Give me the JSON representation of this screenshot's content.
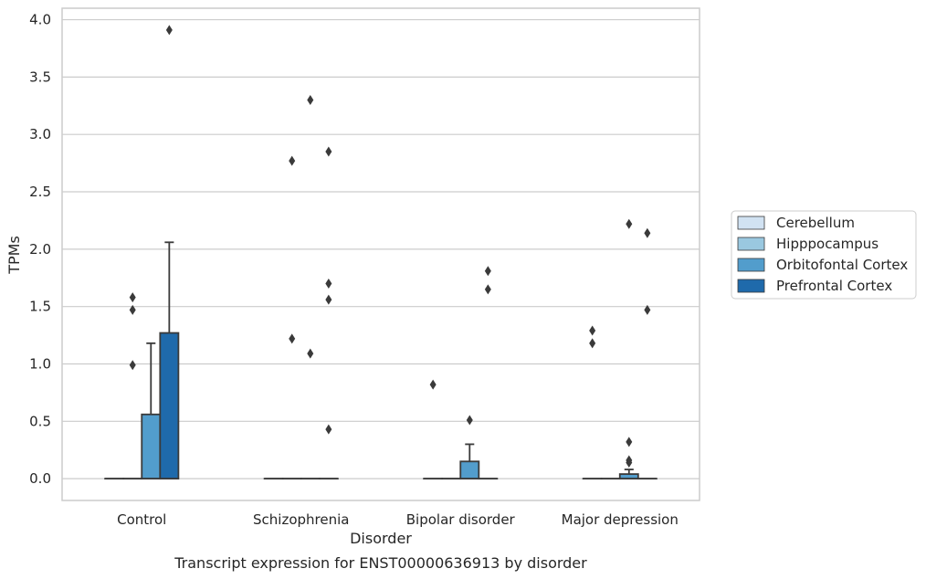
{
  "chart_data": {
    "type": "box",
    "title": "",
    "caption": "Transcript expression for ENST00000636913 by disorder",
    "xlabel": "Disorder",
    "ylabel": "TPMs",
    "ylim": [
      -0.19,
      4.1
    ],
    "yticks": [
      "0.0",
      "0.5",
      "1.0",
      "1.5",
      "2.0",
      "2.5",
      "3.0",
      "3.5",
      "4.0"
    ],
    "grid": "horizontal",
    "legend_position": "outside-right",
    "categories": [
      "Control",
      "Schizophrenia",
      "Bipolar disorder",
      "Major depression"
    ],
    "series": [
      {
        "name": "Cerebellum",
        "color": "#d1e2f2",
        "boxes": [
          {
            "q1": 0,
            "median": 0,
            "q3": 0,
            "whisker_low": 0,
            "whisker_high": 0,
            "outliers": []
          },
          {
            "q1": 0,
            "median": 0,
            "q3": 0,
            "whisker_low": 0,
            "whisker_high": 0,
            "outliers": []
          },
          {
            "q1": 0,
            "median": 0,
            "q3": 0,
            "whisker_low": 0,
            "whisker_high": 0,
            "outliers": [
              0.82
            ]
          },
          {
            "q1": 0,
            "median": 0,
            "q3": 0,
            "whisker_low": 0,
            "whisker_high": 0,
            "outliers": [
              1.29,
              1.18
            ]
          }
        ]
      },
      {
        "name": "Hipppocampus",
        "color": "#9ac8e0",
        "boxes": [
          {
            "q1": 0,
            "median": 0,
            "q3": 0,
            "whisker_low": 0,
            "whisker_high": 0,
            "outliers": [
              1.58,
              1.47,
              0.99
            ]
          },
          {
            "q1": 0,
            "median": 0,
            "q3": 0,
            "whisker_low": 0,
            "whisker_high": 0,
            "outliers": [
              2.77,
              1.22
            ]
          },
          {
            "q1": 0,
            "median": 0,
            "q3": 0,
            "whisker_low": 0,
            "whisker_high": 0,
            "outliers": []
          },
          {
            "q1": 0,
            "median": 0,
            "q3": 0,
            "whisker_low": 0,
            "whisker_high": 0,
            "outliers": []
          }
        ]
      },
      {
        "name": "Orbitofontal Cortex",
        "color": "#529dcc",
        "boxes": [
          {
            "q1": 0,
            "median": 0,
            "q3": 0.56,
            "whisker_low": 0,
            "whisker_high": 1.18,
            "outliers": []
          },
          {
            "q1": 0,
            "median": 0,
            "q3": 0,
            "whisker_low": 0,
            "whisker_high": 0,
            "outliers": [
              3.3,
              1.09
            ]
          },
          {
            "q1": 0,
            "median": 0,
            "q3": 0.15,
            "whisker_low": 0,
            "whisker_high": 0.3,
            "outliers": [
              0.51
            ]
          },
          {
            "q1": 0,
            "median": 0,
            "q3": 0.04,
            "whisker_low": 0,
            "whisker_high": 0.08,
            "outliers": [
              2.22,
              0.32,
              0.16,
              0.14
            ]
          }
        ]
      },
      {
        "name": "Prefrontal Cortex",
        "color": "#1f6aab",
        "boxes": [
          {
            "q1": 0,
            "median": 0,
            "q3": 1.27,
            "whisker_low": 0,
            "whisker_high": 2.06,
            "outliers": [
              3.91
            ]
          },
          {
            "q1": 0,
            "median": 0,
            "q3": 0,
            "whisker_low": 0,
            "whisker_high": 0,
            "outliers": [
              2.85,
              1.7,
              1.56,
              0.43
            ]
          },
          {
            "q1": 0,
            "median": 0,
            "q3": 0,
            "whisker_low": 0,
            "whisker_high": 0,
            "outliers": [
              1.81,
              1.65
            ]
          },
          {
            "q1": 0,
            "median": 0,
            "q3": 0,
            "whisker_low": 0,
            "whisker_high": 0,
            "outliers": [
              2.14,
              1.47
            ]
          }
        ]
      }
    ]
  }
}
